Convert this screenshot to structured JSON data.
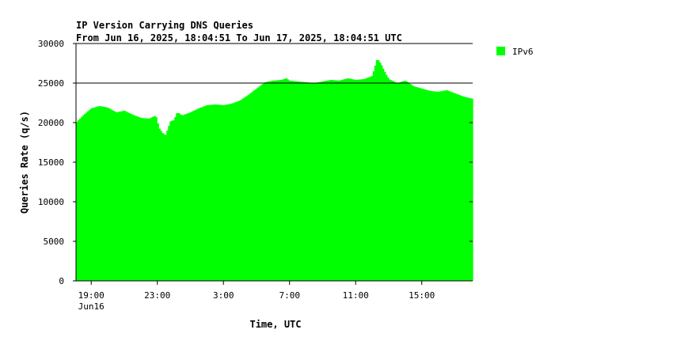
{
  "chart_data": {
    "type": "area",
    "title": "IP Version Carrying DNS Queries",
    "subtitle": "From Jun 16, 2025, 18:04:51 To Jun 17, 2025, 18:04:51 UTC",
    "xlabel": "Time, UTC",
    "ylabel": "Queries Rate (q/s)",
    "x_unit": "hours since Jun 16, 2025 18:00 UTC",
    "x_range": [
      0.08,
      24.08
    ],
    "ylim": [
      0,
      30000
    ],
    "y_ticks": [
      0,
      5000,
      10000,
      15000,
      20000,
      25000,
      30000
    ],
    "y_tick_labels": [
      "0",
      "5000",
      "10000",
      "15000",
      "20000",
      "25000",
      "30000"
    ],
    "x_ticks": [
      {
        "x": 1,
        "label": "19:00"
      },
      {
        "x": 5,
        "label": "23:00"
      },
      {
        "x": 9,
        "label": "3:00"
      },
      {
        "x": 13,
        "label": "7:00"
      },
      {
        "x": 17,
        "label": "11:00"
      },
      {
        "x": 21,
        "label": "15:00"
      }
    ],
    "date_label": {
      "x": 1,
      "label": "Jun16"
    },
    "grid_lines_y": [
      25000,
      30000
    ],
    "series": [
      {
        "name": "IPv6",
        "color": "#00ff00",
        "x": [
          0.08,
          0.5,
          1.0,
          1.5,
          2.0,
          2.5,
          3.0,
          3.5,
          4.0,
          4.5,
          4.9,
          5.1,
          5.3,
          5.5,
          5.8,
          6.0,
          6.2,
          6.5,
          7.0,
          7.5,
          8.0,
          8.5,
          9.0,
          9.5,
          10.0,
          10.5,
          11.0,
          11.5,
          12.0,
          12.5,
          12.8,
          13.0,
          13.5,
          14.0,
          14.5,
          15.0,
          15.5,
          16.0,
          16.5,
          17.0,
          17.5,
          18.0,
          18.3,
          18.5,
          18.8,
          19.0,
          19.5,
          20.0,
          20.5,
          21.0,
          21.5,
          22.0,
          22.5,
          23.0,
          23.5,
          24.08
        ],
        "y": [
          20000,
          20900,
          21800,
          22100,
          21900,
          21300,
          21500,
          21000,
          20600,
          20500,
          20900,
          19300,
          18700,
          18400,
          20200,
          20300,
          21300,
          20900,
          21300,
          21800,
          22200,
          22300,
          22200,
          22400,
          22800,
          23500,
          24300,
          25100,
          25300,
          25400,
          25600,
          25300,
          25200,
          25100,
          25000,
          25200,
          25400,
          25300,
          25600,
          25400,
          25500,
          25900,
          28100,
          27500,
          26200,
          25500,
          25000,
          25300,
          24600,
          24300,
          24000,
          23900,
          24100,
          23700,
          23300,
          23000
        ]
      }
    ],
    "legend": {
      "placement": "right",
      "entries": [
        {
          "name": "IPv6",
          "color": "#00ff00"
        }
      ]
    },
    "grid": false
  }
}
